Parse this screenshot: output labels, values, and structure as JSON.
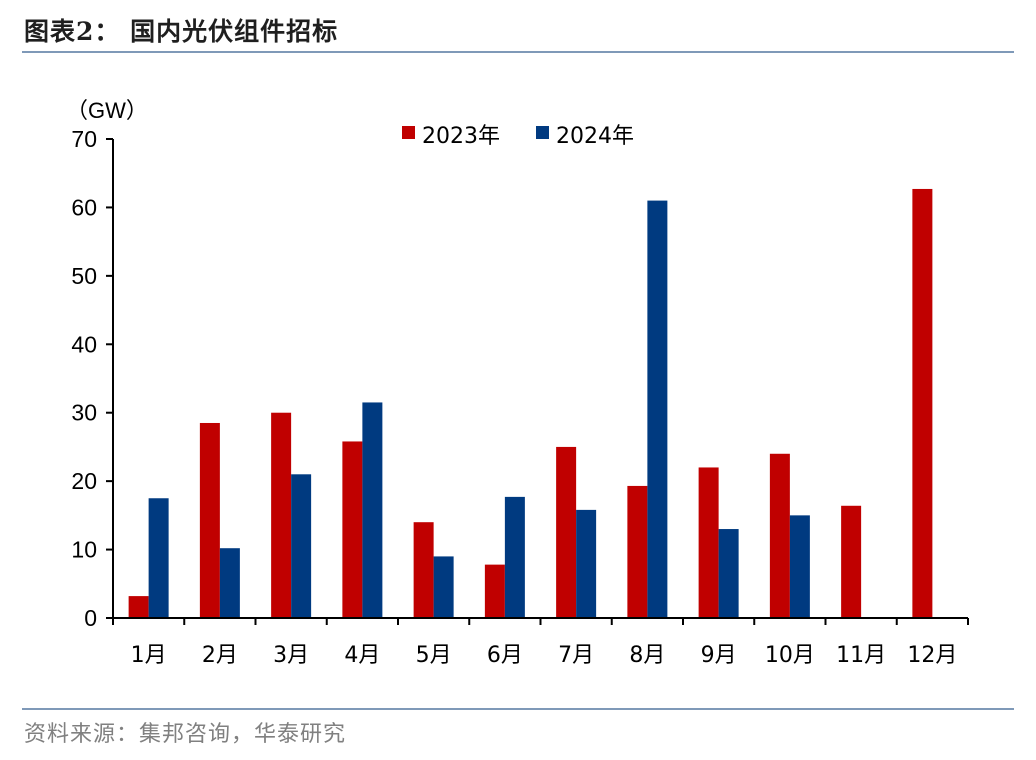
{
  "figure_title": "图表2：  国内光伏组件招标",
  "source": "资料来源：集邦咨询，华泰研究",
  "chart_data": {
    "type": "bar",
    "unit_label": "（GW）",
    "categories": [
      "1月",
      "2月",
      "3月",
      "4月",
      "5月",
      "6月",
      "7月",
      "8月",
      "9月",
      "10月",
      "11月",
      "12月"
    ],
    "series": [
      {
        "name": "2023年",
        "color": "#c00000",
        "values": [
          3.2,
          28.5,
          30,
          25.8,
          14,
          7.8,
          25,
          19.3,
          22,
          24,
          16.4,
          62.7
        ]
      },
      {
        "name": "2024年",
        "color": "#003a80",
        "values": [
          17.5,
          10.2,
          21,
          31.5,
          9,
          17.7,
          15.8,
          61,
          13,
          15,
          null,
          null
        ]
      }
    ],
    "ylim": [
      0,
      70
    ],
    "yticks": [
      0,
      10,
      20,
      30,
      40,
      50,
      60,
      70
    ],
    "grid": false,
    "legend_position": "top-center"
  }
}
